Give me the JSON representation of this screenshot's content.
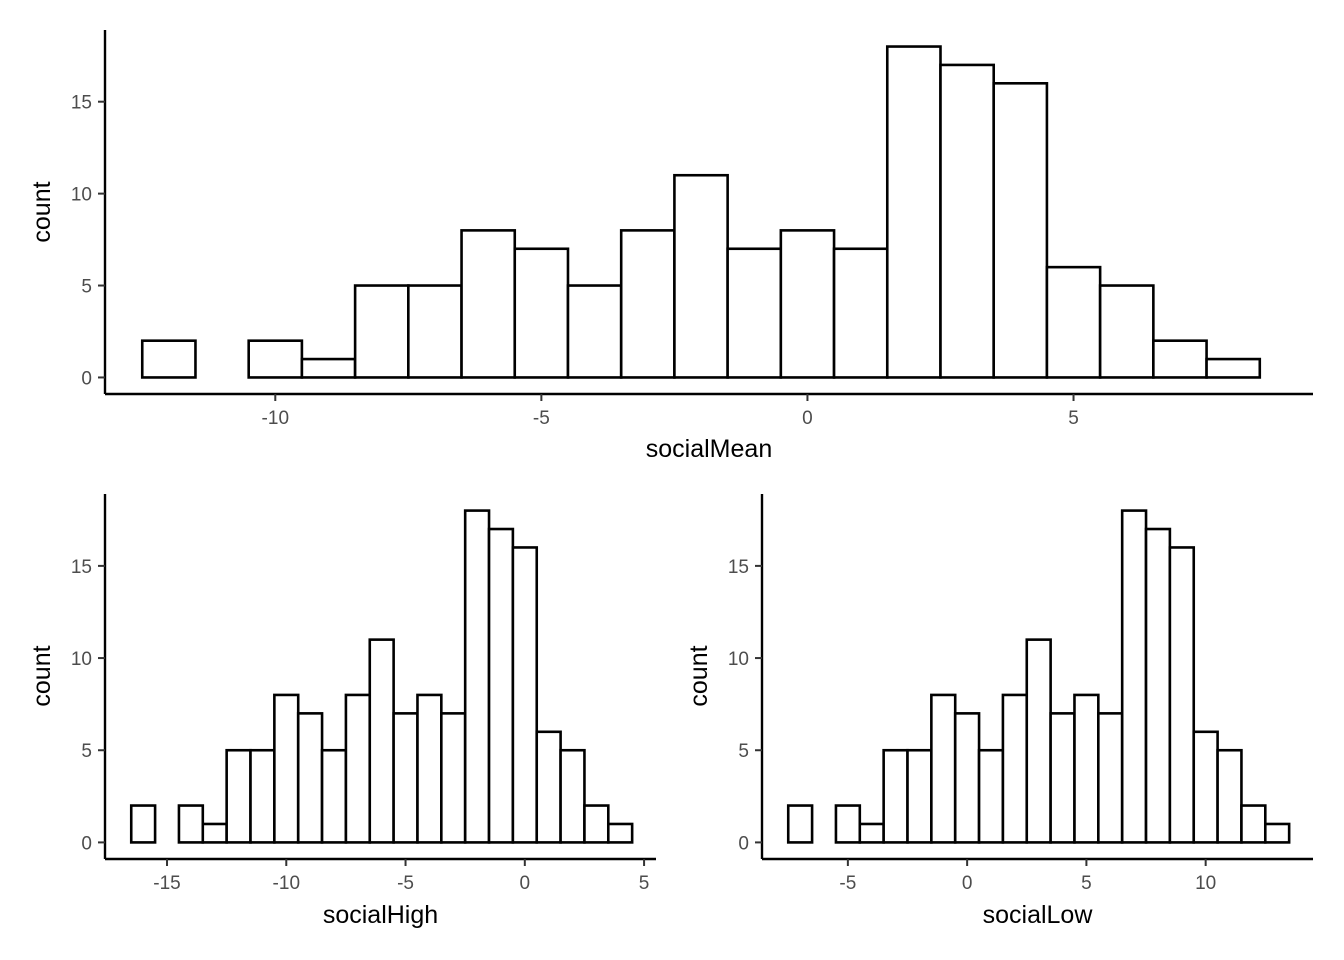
{
  "chart_data": [
    {
      "type": "bar",
      "xlabel": "socialMean",
      "ylabel": "count",
      "bin_width": 1,
      "bins": [
        {
          "x": -12,
          "count": 2
        },
        {
          "x": -11,
          "count": 0
        },
        {
          "x": -10,
          "count": 2
        },
        {
          "x": -9,
          "count": 1
        },
        {
          "x": -8,
          "count": 5
        },
        {
          "x": -7,
          "count": 5
        },
        {
          "x": -6,
          "count": 8
        },
        {
          "x": -5,
          "count": 7
        },
        {
          "x": -4,
          "count": 5
        },
        {
          "x": -3,
          "count": 8
        },
        {
          "x": -2,
          "count": 11
        },
        {
          "x": -1,
          "count": 7
        },
        {
          "x": 0,
          "count": 8
        },
        {
          "x": 1,
          "count": 7
        },
        {
          "x": 2,
          "count": 18
        },
        {
          "x": 3,
          "count": 17
        },
        {
          "x": 4,
          "count": 16
        },
        {
          "x": 5,
          "count": 6
        },
        {
          "x": 6,
          "count": 5
        },
        {
          "x": 7,
          "count": 2
        },
        {
          "x": 8,
          "count": 1
        }
      ],
      "xlim": [
        -13.2,
        9.5
      ],
      "ylim": [
        -0.9,
        18.9
      ],
      "xticks": [
        -10,
        -5,
        0,
        5
      ],
      "xtick_labels": [
        "-10",
        "-5",
        "0",
        "5"
      ],
      "yticks": [
        0,
        5,
        10,
        15
      ],
      "ytick_labels": [
        "0",
        "5",
        "10",
        "15"
      ],
      "grid": false,
      "legend": "none"
    },
    {
      "type": "bar",
      "xlabel": "socialHigh",
      "ylabel": "count",
      "bin_width": 1,
      "bins": [
        {
          "x": -16,
          "count": 2
        },
        {
          "x": -15,
          "count": 0
        },
        {
          "x": -14,
          "count": 2
        },
        {
          "x": -13,
          "count": 1
        },
        {
          "x": -12,
          "count": 5
        },
        {
          "x": -11,
          "count": 5
        },
        {
          "x": -10,
          "count": 8
        },
        {
          "x": -9,
          "count": 7
        },
        {
          "x": -8,
          "count": 5
        },
        {
          "x": -7,
          "count": 8
        },
        {
          "x": -6,
          "count": 11
        },
        {
          "x": -5,
          "count": 7
        },
        {
          "x": -4,
          "count": 8
        },
        {
          "x": -3,
          "count": 7
        },
        {
          "x": -2,
          "count": 18
        },
        {
          "x": -1,
          "count": 17
        },
        {
          "x": 0,
          "count": 16
        },
        {
          "x": 1,
          "count": 6
        },
        {
          "x": 2,
          "count": 5
        },
        {
          "x": 3,
          "count": 2
        },
        {
          "x": 4,
          "count": 1
        }
      ],
      "xlim": [
        -17.6,
        5.5
      ],
      "ylim": [
        -0.9,
        18.9
      ],
      "xticks": [
        -15,
        -10,
        -5,
        0,
        5
      ],
      "xtick_labels": [
        "-15",
        "-10",
        "-5",
        "0",
        "5"
      ],
      "yticks": [
        0,
        5,
        10,
        15
      ],
      "ytick_labels": [
        "0",
        "5",
        "10",
        "15"
      ],
      "grid": false,
      "legend": "none"
    },
    {
      "type": "bar",
      "xlabel": "socialLow",
      "ylabel": "count",
      "bin_width": 1,
      "bins": [
        {
          "x": -7,
          "count": 2
        },
        {
          "x": -6,
          "count": 0
        },
        {
          "x": -5,
          "count": 2
        },
        {
          "x": -4,
          "count": 1
        },
        {
          "x": -3,
          "count": 5
        },
        {
          "x": -2,
          "count": 5
        },
        {
          "x": -1,
          "count": 8
        },
        {
          "x": 0,
          "count": 7
        },
        {
          "x": 1,
          "count": 5
        },
        {
          "x": 2,
          "count": 8
        },
        {
          "x": 3,
          "count": 11
        },
        {
          "x": 4,
          "count": 7
        },
        {
          "x": 5,
          "count": 8
        },
        {
          "x": 6,
          "count": 7
        },
        {
          "x": 7,
          "count": 18
        },
        {
          "x": 8,
          "count": 17
        },
        {
          "x": 9,
          "count": 16
        },
        {
          "x": 10,
          "count": 6
        },
        {
          "x": 11,
          "count": 5
        },
        {
          "x": 12,
          "count": 2
        },
        {
          "x": 13,
          "count": 1
        }
      ],
      "xlim": [
        -8.6,
        14.5
      ],
      "ylim": [
        -0.9,
        18.9
      ],
      "xticks": [
        -5,
        0,
        5,
        10
      ],
      "xtick_labels": [
        "-5",
        "0",
        "5",
        "10"
      ],
      "yticks": [
        0,
        5,
        10,
        15
      ],
      "ytick_labels": [
        "0",
        "5",
        "10",
        "15"
      ],
      "grid": false,
      "legend": "none"
    }
  ]
}
